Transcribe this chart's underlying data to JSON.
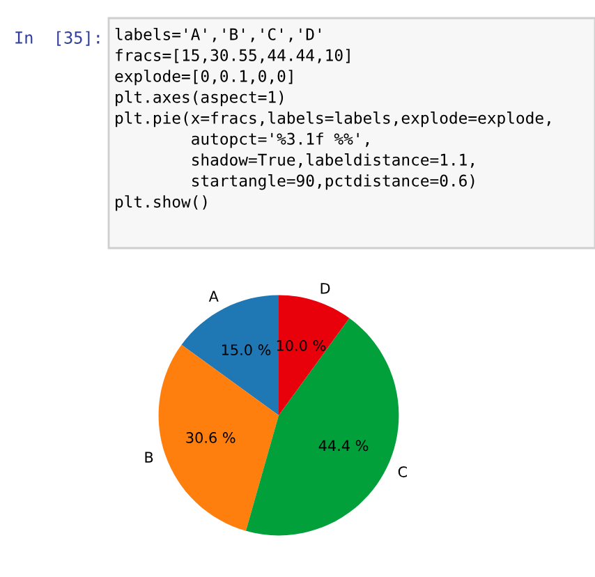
{
  "chart_data": {
    "type": "pie",
    "categories": [
      "A",
      "B",
      "C",
      "D"
    ],
    "values": [
      15.0,
      30.6,
      44.4,
      10.0
    ],
    "colors": [
      "#1f77b4",
      "#ff7f0e",
      "#02a03a",
      "#e8000b"
    ],
    "value_labels": [
      "15.0 %",
      "30.6 %",
      "44.4 %",
      "10.0 %"
    ],
    "annotations": [
      "In  [35]:",
      "labels='A','B','C','D'\nfracs=[15,30.55,44.44,10]\nexplode=[0,0.1,0,0]\nplt.axes(aspect=1)\nplt.pie(x=fracs,labels=labels,explode=explode,\n        autopct='%3.1f %%',\n        shadow=True,labeldistance=1.1,\n        startangle=90,pctdistance=0.6)\nplt.show()"
    ]
  }
}
